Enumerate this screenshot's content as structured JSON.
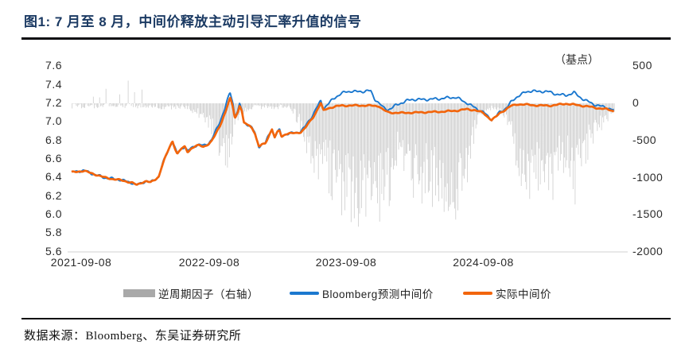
{
  "header": {
    "title": "图1:  7 月至 8 月，中间价释放主动引导汇率升值的信号"
  },
  "footer": {
    "source": "数据来源：Bloomberg、东吴证券研究所"
  },
  "chart_data": {
    "type": "composite",
    "subtypes": [
      "bar",
      "line",
      "line"
    ],
    "title": "7月至8月，中间价释放主动引导汇率升值的信号",
    "right_axis_unit": "（基点）",
    "left_axis": {
      "ticks": [
        "7.6",
        "7.4",
        "7.2",
        "7.0",
        "6.8",
        "6.6",
        "6.4",
        "6.2",
        "6.0",
        "5.8",
        "5.6"
      ],
      "range": [
        5.6,
        7.6
      ]
    },
    "right_axis": {
      "ticks": [
        "500",
        "0",
        "-500",
        "-1000",
        "-1500",
        "-2000"
      ],
      "range": [
        -2000,
        500
      ]
    },
    "x_axis": {
      "ticks": [
        "2021-09-08",
        "2022-09-08",
        "2023-09-08",
        "2024-09-08"
      ],
      "start": "2021-09-08",
      "end": "2025-08"
    },
    "legend": [
      {
        "label": "逆周期因子（右轴）",
        "type": "bar",
        "color": "#a9a9a9"
      },
      {
        "label": "Bloomberg预测中间价",
        "type": "line",
        "color": "#1b78cf"
      },
      {
        "label": "实际中间价",
        "type": "line",
        "color": "#f2650c"
      }
    ],
    "colors": {
      "bars": "#c3c3c3",
      "forecast": "#1b78cf",
      "actual": "#f2650c",
      "axis_line": "#d9d9d9",
      "title_navy": "#1b3a63"
    },
    "grid": false,
    "legend_position": "bottom",
    "series": {
      "actual_fix_anchors_t_value": [
        [
          0,
          6.455
        ],
        [
          0.05,
          6.465
        ],
        [
          0.09,
          6.472
        ],
        [
          0.14,
          6.447
        ],
        [
          0.19,
          6.425
        ],
        [
          0.24,
          6.4
        ],
        [
          0.29,
          6.386
        ],
        [
          0.34,
          6.376
        ],
        [
          0.39,
          6.36
        ],
        [
          0.44,
          6.345
        ],
        [
          0.475,
          6.318
        ],
        [
          0.51,
          6.345
        ],
        [
          0.545,
          6.362
        ],
        [
          0.575,
          6.345
        ],
        [
          0.61,
          6.378
        ],
        [
          0.635,
          6.41
        ],
        [
          0.655,
          6.51
        ],
        [
          0.675,
          6.59
        ],
        [
          0.695,
          6.66
        ],
        [
          0.715,
          6.73
        ],
        [
          0.735,
          6.792
        ],
        [
          0.755,
          6.71
        ],
        [
          0.77,
          6.655
        ],
        [
          0.8,
          6.71
        ],
        [
          0.825,
          6.732
        ],
        [
          0.845,
          6.676
        ],
        [
          0.87,
          6.71
        ],
        [
          0.9,
          6.736
        ],
        [
          0.93,
          6.747
        ],
        [
          0.96,
          6.732
        ],
        [
          1.0,
          6.762
        ],
        [
          1.02,
          6.79
        ],
        [
          1.04,
          6.84
        ],
        [
          1.06,
          6.9
        ],
        [
          1.08,
          6.955
        ],
        [
          1.1,
          7.03
        ],
        [
          1.12,
          7.1
        ],
        [
          1.135,
          7.17
        ],
        [
          1.155,
          7.255
        ],
        [
          1.175,
          7.16
        ],
        [
          1.19,
          7.045
        ],
        [
          1.21,
          7.1
        ],
        [
          1.225,
          7.18
        ],
        [
          1.24,
          7.12
        ],
        [
          1.255,
          6.985
        ],
        [
          1.275,
          6.975
        ],
        [
          1.295,
          6.96
        ],
        [
          1.315,
          6.935
        ],
        [
          1.335,
          6.88
        ],
        [
          1.35,
          6.8
        ],
        [
          1.365,
          6.73
        ],
        [
          1.385,
          6.755
        ],
        [
          1.41,
          6.765
        ],
        [
          1.44,
          6.86
        ],
        [
          1.46,
          6.92
        ],
        [
          1.48,
          6.83
        ],
        [
          1.5,
          6.89
        ],
        [
          1.515,
          6.91
        ],
        [
          1.53,
          6.84
        ],
        [
          1.56,
          6.87
        ],
        [
          1.6,
          6.875
        ],
        [
          1.64,
          6.88
        ],
        [
          1.67,
          6.89
        ],
        [
          1.7,
          6.93
        ],
        [
          1.73,
          6.99
        ],
        [
          1.76,
          7.05
        ],
        [
          1.79,
          7.13
        ],
        [
          1.815,
          7.205
        ],
        [
          1.835,
          7.12
        ],
        [
          1.86,
          7.14
        ],
        [
          1.89,
          7.155
        ],
        [
          1.93,
          7.168
        ],
        [
          1.97,
          7.175
        ],
        [
          2.05,
          7.176
        ],
        [
          2.15,
          7.176
        ],
        [
          2.24,
          7.17
        ],
        [
          2.27,
          7.13
        ],
        [
          2.31,
          7.1
        ],
        [
          2.4,
          7.096
        ],
        [
          2.5,
          7.1
        ],
        [
          2.6,
          7.105
        ],
        [
          2.7,
          7.11
        ],
        [
          2.8,
          7.12
        ],
        [
          2.88,
          7.136
        ],
        [
          2.94,
          7.126
        ],
        [
          3.0,
          7.096
        ],
        [
          3.03,
          7.056
        ],
        [
          3.06,
          7.02
        ],
        [
          3.09,
          7.05
        ],
        [
          3.12,
          7.095
        ],
        [
          3.16,
          7.13
        ],
        [
          3.2,
          7.17
        ],
        [
          3.25,
          7.19
        ],
        [
          3.31,
          7.186
        ],
        [
          3.4,
          7.176
        ],
        [
          3.5,
          7.176
        ],
        [
          3.6,
          7.196
        ],
        [
          3.68,
          7.182
        ],
        [
          3.76,
          7.166
        ],
        [
          3.84,
          7.146
        ],
        [
          3.9,
          7.136
        ],
        [
          3.96,
          7.112
        ]
      ],
      "forecast_gap_bp_anchors": [
        [
          0,
          5
        ],
        [
          0.6,
          5
        ],
        [
          0.64,
          15
        ],
        [
          0.7,
          25
        ],
        [
          0.8,
          20
        ],
        [
          0.9,
          40
        ],
        [
          0.95,
          80
        ],
        [
          1.0,
          160
        ],
        [
          1.04,
          300
        ],
        [
          1.08,
          450
        ],
        [
          1.12,
          560
        ],
        [
          1.15,
          650
        ],
        [
          1.17,
          450
        ],
        [
          1.19,
          220
        ],
        [
          1.22,
          120
        ],
        [
          1.25,
          80
        ],
        [
          1.3,
          40
        ],
        [
          1.36,
          20
        ],
        [
          1.45,
          15
        ],
        [
          1.55,
          25
        ],
        [
          1.6,
          30
        ],
        [
          1.65,
          60
        ],
        [
          1.7,
          120
        ],
        [
          1.74,
          250
        ],
        [
          1.78,
          350
        ],
        [
          1.81,
          250
        ],
        [
          1.84,
          300
        ],
        [
          1.87,
          500
        ],
        [
          1.9,
          800
        ],
        [
          1.93,
          1050
        ],
        [
          1.96,
          1250
        ],
        [
          2.0,
          1450
        ],
        [
          2.04,
          1550
        ],
        [
          2.08,
          1500
        ],
        [
          2.12,
          1550
        ],
        [
          2.16,
          1620
        ],
        [
          2.18,
          1550
        ],
        [
          2.21,
          700
        ],
        [
          2.24,
          300
        ],
        [
          2.27,
          200
        ],
        [
          2.3,
          250
        ],
        [
          2.33,
          500
        ],
        [
          2.36,
          800
        ],
        [
          2.4,
          1100
        ],
        [
          2.44,
          1300
        ],
        [
          2.48,
          1400
        ],
        [
          2.52,
          1380
        ],
        [
          2.56,
          1350
        ],
        [
          2.6,
          1380
        ],
        [
          2.64,
          1420
        ],
        [
          2.68,
          1430
        ],
        [
          2.72,
          1450
        ],
        [
          2.76,
          1440
        ],
        [
          2.8,
          1400
        ],
        [
          2.83,
          1150
        ],
        [
          2.86,
          850
        ],
        [
          2.9,
          550
        ],
        [
          2.93,
          350
        ],
        [
          2.96,
          200
        ],
        [
          3.0,
          100
        ],
        [
          3.03,
          40
        ],
        [
          3.06,
          30
        ],
        [
          3.09,
          40
        ],
        [
          3.12,
          70
        ],
        [
          3.15,
          120
        ],
        [
          3.18,
          250
        ],
        [
          3.21,
          500
        ],
        [
          3.24,
          800
        ],
        [
          3.27,
          1050
        ],
        [
          3.3,
          1250
        ],
        [
          3.33,
          1400
        ],
        [
          3.36,
          1550
        ],
        [
          3.39,
          1450
        ],
        [
          3.42,
          1500
        ],
        [
          3.45,
          1580
        ],
        [
          3.48,
          1500
        ],
        [
          3.51,
          1300
        ],
        [
          3.54,
          1150
        ],
        [
          3.57,
          1000
        ],
        [
          3.6,
          850
        ],
        [
          3.63,
          1050
        ],
        [
          3.66,
          1300
        ],
        [
          3.69,
          1000
        ],
        [
          3.72,
          800
        ],
        [
          3.75,
          620
        ],
        [
          3.78,
          480
        ],
        [
          3.81,
          350
        ],
        [
          3.84,
          260
        ],
        [
          3.87,
          200
        ],
        [
          3.9,
          150
        ],
        [
          3.93,
          110
        ],
        [
          3.96,
          60
        ]
      ],
      "cyclical_factor_depth_bp_anchors": [
        [
          0,
          35
        ],
        [
          0.6,
          35
        ],
        [
          0.64,
          45
        ],
        [
          0.7,
          70
        ],
        [
          0.8,
          70
        ],
        [
          0.9,
          110
        ],
        [
          0.95,
          170
        ],
        [
          1.0,
          300
        ],
        [
          1.04,
          450
        ],
        [
          1.08,
          600
        ],
        [
          1.12,
          700
        ],
        [
          1.15,
          750
        ],
        [
          1.17,
          500
        ],
        [
          1.19,
          250
        ],
        [
          1.22,
          150
        ],
        [
          1.25,
          100
        ],
        [
          1.3,
          60
        ],
        [
          1.36,
          45
        ],
        [
          1.45,
          40
        ],
        [
          1.55,
          50
        ],
        [
          1.6,
          80
        ],
        [
          1.64,
          200
        ],
        [
          1.68,
          380
        ],
        [
          1.71,
          560
        ],
        [
          1.74,
          680
        ],
        [
          1.78,
          800
        ],
        [
          1.82,
          880
        ],
        [
          1.86,
          960
        ],
        [
          1.9,
          1060
        ],
        [
          1.94,
          1180
        ],
        [
          1.98,
          1280
        ],
        [
          2.02,
          1340
        ],
        [
          2.06,
          1380
        ],
        [
          2.1,
          1340
        ],
        [
          2.14,
          1400
        ],
        [
          2.18,
          1360
        ],
        [
          2.22,
          1320
        ],
        [
          2.26,
          1280
        ],
        [
          2.3,
          1200
        ],
        [
          2.34,
          1050
        ],
        [
          2.38,
          600
        ],
        [
          2.42,
          750
        ],
        [
          2.46,
          900
        ],
        [
          2.5,
          1050
        ],
        [
          2.55,
          1150
        ],
        [
          2.6,
          1100
        ],
        [
          2.65,
          1180
        ],
        [
          2.7,
          1280
        ],
        [
          2.75,
          1340
        ],
        [
          2.8,
          1380
        ],
        [
          2.84,
          1200
        ],
        [
          2.88,
          900
        ],
        [
          2.92,
          500
        ],
        [
          2.96,
          260
        ],
        [
          3.0,
          140
        ],
        [
          3.04,
          80
        ],
        [
          3.08,
          70
        ],
        [
          3.12,
          110
        ],
        [
          3.16,
          180
        ],
        [
          3.2,
          430
        ],
        [
          3.24,
          700
        ],
        [
          3.28,
          930
        ],
        [
          3.32,
          1030
        ],
        [
          3.36,
          1130
        ],
        [
          3.4,
          1030
        ],
        [
          3.44,
          1130
        ],
        [
          3.48,
          1160
        ],
        [
          3.52,
          1010
        ],
        [
          3.56,
          870
        ],
        [
          3.6,
          750
        ],
        [
          3.63,
          960
        ],
        [
          3.66,
          1180
        ],
        [
          3.7,
          940
        ],
        [
          3.74,
          730
        ],
        [
          3.78,
          520
        ],
        [
          3.82,
          370
        ],
        [
          3.86,
          270
        ],
        [
          3.9,
          200
        ],
        [
          3.93,
          150
        ],
        [
          3.96,
          90
        ]
      ],
      "positive_spikes_bp": [
        [
          0.16,
          90
        ],
        [
          0.205,
          80
        ],
        [
          0.25,
          195
        ],
        [
          0.35,
          120
        ],
        [
          0.41,
          305
        ],
        [
          0.46,
          150
        ],
        [
          0.51,
          185
        ]
      ]
    }
  }
}
